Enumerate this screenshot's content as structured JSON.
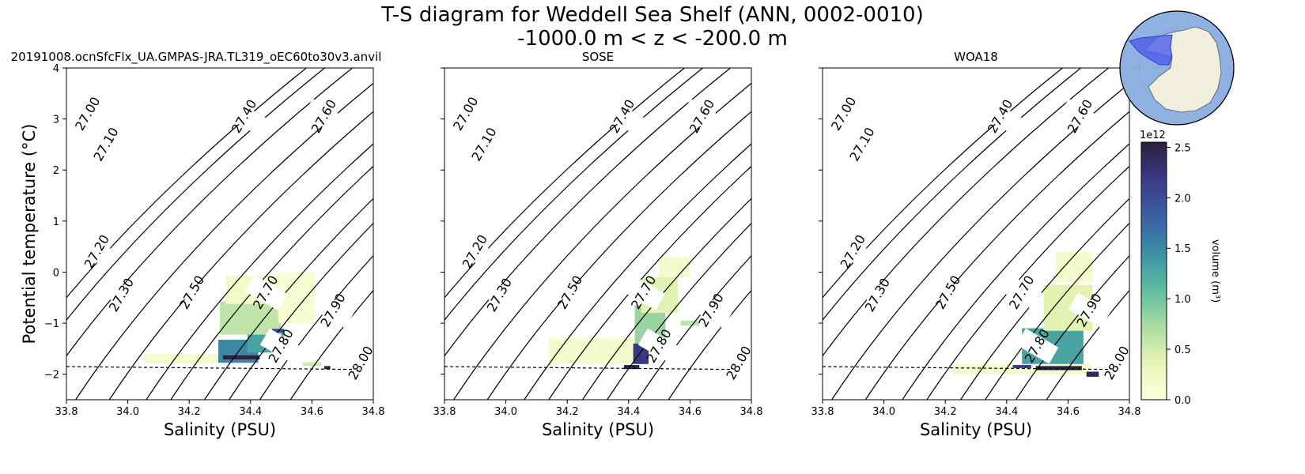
{
  "figure": {
    "title_line1": "T-S diagram for Weddell Sea Shelf (ANN, 0002-0010)",
    "title_line2": "-1000.0 m < z < -200.0 m"
  },
  "chart_data": [
    {
      "type": "heatmap",
      "title": "20191008.ocnSfcFlx_UA.GMPAS-JRA.TL319_oEC60to30v3.anvil",
      "xlabel": "Salinity (PSU)",
      "ylabel": "Potential temperature (°C)",
      "xlim": [
        33.8,
        34.8
      ],
      "ylim": [
        -2.5,
        4
      ],
      "xticks": [
        "33.8",
        "34.0",
        "34.2",
        "34.4",
        "34.6",
        "34.8"
      ],
      "yticks": [
        "−2",
        "−1",
        "0",
        "1",
        "2",
        "3",
        "4"
      ],
      "freezing_line": [
        [
          33.8,
          -1.85
        ],
        [
          34.8,
          -1.91
        ]
      ],
      "isopycnals": [
        "27.00",
        "27.10",
        "27.20",
        "27.30",
        "27.40",
        "27.50",
        "27.60",
        "27.70",
        "27.80",
        "27.90",
        "28.00"
      ],
      "hist_cells": [
        {
          "s": 34.23,
          "t": -1.7,
          "v": 0.15,
          "w": 0.35,
          "h": 0.18
        },
        {
          "s": 34.36,
          "t": -1.55,
          "v": 1.5,
          "w": 0.13,
          "h": 0.45
        },
        {
          "s": 34.45,
          "t": -1.35,
          "v": 1.3,
          "w": 0.12,
          "h": 0.45
        },
        {
          "s": 34.4,
          "t": -0.9,
          "v": 0.6,
          "w": 0.2,
          "h": 0.65
        },
        {
          "s": 34.42,
          "t": -0.35,
          "v": 0.2,
          "w": 0.2,
          "h": 0.55
        },
        {
          "s": 34.55,
          "t": -0.5,
          "v": 0.12,
          "w": 0.12,
          "h": 1.0
        },
        {
          "s": 34.37,
          "t": -1.67,
          "v": 2.5,
          "w": 0.12,
          "h": 0.08
        },
        {
          "s": 34.49,
          "t": -1.15,
          "v": 2.0,
          "w": 0.04,
          "h": 0.08
        },
        {
          "s": 34.6,
          "t": -1.8,
          "v": 0.5,
          "w": 0.06,
          "h": 0.07
        },
        {
          "s": 34.65,
          "t": -1.87,
          "v": 2.5,
          "w": 0.02,
          "h": 0.06
        }
      ]
    },
    {
      "type": "heatmap",
      "title": "SOSE",
      "xlabel": "Salinity (PSU)",
      "xlim": [
        33.8,
        34.8
      ],
      "ylim": [
        -2.5,
        4
      ],
      "xticks": [
        "33.8",
        "34.0",
        "34.2",
        "34.4",
        "34.6",
        "34.8"
      ],
      "freezing_line": [
        [
          33.8,
          -1.85
        ],
        [
          34.8,
          -1.91
        ]
      ],
      "isopycnals": [
        "27.00",
        "27.10",
        "27.20",
        "27.30",
        "27.40",
        "27.50",
        "27.60",
        "27.70",
        "27.80",
        "27.90",
        "28.00"
      ],
      "hist_cells": [
        {
          "s": 34.3,
          "t": -1.55,
          "v": 0.15,
          "w": 0.32,
          "h": 0.5
        },
        {
          "s": 34.47,
          "t": -1.1,
          "v": 0.8,
          "w": 0.1,
          "h": 0.9
        },
        {
          "s": 34.5,
          "t": -0.45,
          "v": 0.4,
          "w": 0.12,
          "h": 0.7
        },
        {
          "s": 34.55,
          "t": 0.1,
          "v": 0.15,
          "w": 0.1,
          "h": 0.4
        },
        {
          "s": 34.44,
          "t": -1.6,
          "v": 2.2,
          "w": 0.05,
          "h": 0.4
        },
        {
          "s": 34.41,
          "t": -1.86,
          "v": 2.5,
          "w": 0.05,
          "h": 0.08
        },
        {
          "s": 34.6,
          "t": -1.0,
          "v": 0.6,
          "w": 0.06,
          "h": 0.1
        }
      ]
    },
    {
      "type": "heatmap",
      "title": "WOA18",
      "xlabel": "Salinity (PSU)",
      "xlim": [
        33.8,
        34.8
      ],
      "ylim": [
        -2.5,
        4
      ],
      "xticks": [
        "33.8",
        "34.0",
        "34.2",
        "34.4",
        "34.6",
        "34.8"
      ],
      "freezing_line": [
        [
          33.8,
          -1.85
        ],
        [
          34.8,
          -1.91
        ]
      ],
      "isopycnals": [
        "27.00",
        "27.10",
        "27.20",
        "27.30",
        "27.40",
        "27.50",
        "27.60",
        "27.70",
        "27.80",
        "27.90",
        "28.00"
      ],
      "hist_cells": [
        {
          "s": 34.45,
          "t": -1.9,
          "v": 0.15,
          "w": 0.45,
          "h": 0.2
        },
        {
          "s": 34.55,
          "t": -1.45,
          "v": 1.3,
          "w": 0.2,
          "h": 0.7
        },
        {
          "s": 34.6,
          "t": -0.7,
          "v": 0.4,
          "w": 0.16,
          "h": 0.9
        },
        {
          "s": 34.62,
          "t": 0.1,
          "v": 0.15,
          "w": 0.12,
          "h": 0.6
        },
        {
          "s": 34.57,
          "t": -1.88,
          "v": 2.5,
          "w": 0.15,
          "h": 0.08
        },
        {
          "s": 34.68,
          "t": -2.0,
          "v": 2.4,
          "w": 0.04,
          "h": 0.1
        },
        {
          "s": 34.45,
          "t": -1.85,
          "v": 2.2,
          "w": 0.06,
          "h": 0.06
        }
      ]
    }
  ],
  "colorbar": {
    "label": "volume (m³)",
    "scale_text": "1e12",
    "range": [
      0,
      2.55
    ],
    "ticks": [
      "0.0",
      "0.5",
      "1.0",
      "1.5",
      "2.0",
      "2.5"
    ]
  },
  "inset_map": {
    "region": "Weddell Sea Shelf",
    "colors": {
      "ocean": "#8fb2e3",
      "land": "#f0eedc",
      "region": "#4c5be8"
    }
  }
}
